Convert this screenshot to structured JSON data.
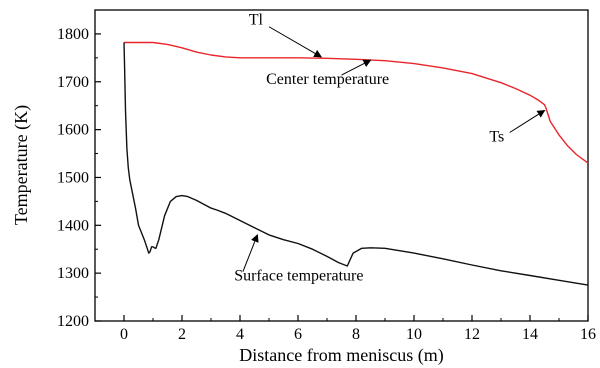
{
  "chart_data": {
    "type": "line",
    "xlabel": "Distance from meniscus (m)",
    "ylabel": "Temperature (K)",
    "xlim": [
      -1,
      16
    ],
    "ylim": [
      1200,
      1850
    ],
    "xticks": [
      0,
      2,
      4,
      6,
      8,
      10,
      12,
      14,
      16
    ],
    "yticks": [
      1200,
      1300,
      1400,
      1500,
      1600,
      1700,
      1800
    ],
    "grid": false,
    "legend": "none",
    "series": [
      {
        "color": "#e8252b",
        "x": [
          0,
          0.5,
          1,
          1.5,
          2,
          2.5,
          3,
          3.5,
          4,
          5,
          6,
          7,
          8,
          9,
          10,
          11,
          12,
          13,
          13.5,
          14,
          14.3,
          14.5,
          14.55,
          14.7,
          15,
          15.3,
          15.6,
          16
        ],
        "y": [
          1782,
          1782,
          1782,
          1778,
          1771,
          1762,
          1756,
          1752,
          1750,
          1750,
          1750,
          1749,
          1747,
          1744,
          1738,
          1729,
          1717,
          1698,
          1686,
          1672,
          1661,
          1652,
          1645,
          1617,
          1589,
          1566,
          1548,
          1530
        ]
      },
      {
        "color": "#111111",
        "x": [
          0,
          0.02,
          0.05,
          0.1,
          0.15,
          0.2,
          0.3,
          0.4,
          0.5,
          0.6,
          0.7,
          0.8,
          0.85,
          0.9,
          0.95,
          1.0,
          1.05,
          1.1,
          1.2,
          1.4,
          1.6,
          1.8,
          2.0,
          2.2,
          2.5,
          3.0,
          3.2,
          3.5,
          4.0,
          4.5,
          5.0,
          5.5,
          6.0,
          6.5,
          7.0,
          7.4,
          7.7,
          7.9,
          8.2,
          8.5,
          9.0,
          10,
          11,
          12,
          13,
          14,
          15,
          16
        ],
        "y": [
          1782,
          1730,
          1640,
          1560,
          1520,
          1495,
          1465,
          1435,
          1400,
          1385,
          1370,
          1352,
          1342,
          1345,
          1355,
          1355,
          1353,
          1352,
          1370,
          1420,
          1450,
          1460,
          1462,
          1460,
          1452,
          1436,
          1432,
          1425,
          1410,
          1395,
          1380,
          1370,
          1362,
          1350,
          1335,
          1322,
          1315,
          1342,
          1352,
          1353,
          1352,
          1342,
          1330,
          1317,
          1305,
          1295,
          1285,
          1275
        ]
      }
    ],
    "annotations": [
      {
        "text": "Tl",
        "x": 4.3,
        "y": 1820,
        "to_x": 6.8,
        "to_y": 1752
      },
      {
        "text": "Center temperature",
        "x": 4.9,
        "y": 1695,
        "to_x": 8.5,
        "to_y": 1745
      },
      {
        "text": "Ts",
        "x": 12.6,
        "y": 1575,
        "to_x": 14.5,
        "to_y": 1640
      },
      {
        "text": "Surface temperature",
        "x": 3.8,
        "y": 1285,
        "to_x": 4.6,
        "to_y": 1380
      }
    ]
  }
}
